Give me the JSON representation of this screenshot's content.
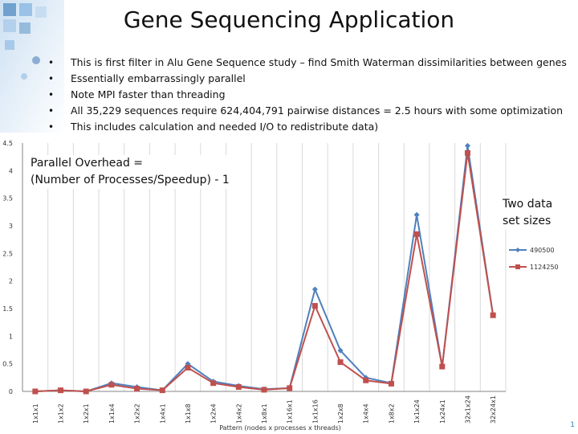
{
  "slide": {
    "title": "Gene Sequencing Application",
    "bullets": [
      "This is first filter in Alu Gene Sequence study – find Smith Waterman dissimilarities between genes",
      "Essentially embarrassingly parallel",
      "Note MPI faster than threading",
      "All 35,229 sequences require 624,404,791 pairwise distances = 2.5 hours with some optimization",
      "This includes calculation and needed I/O to redistribute data)"
    ],
    "overhead_line1": "Parallel Overhead =",
    "overhead_line2": "(Number of Processes/Speedup) - 1",
    "two_data_line1": "Two data",
    "two_data_line2": "set sizes",
    "slide_number": "1"
  },
  "colors": {
    "series1": "#4f81bd",
    "series2": "#c0504d",
    "grid": "#d9d9d9",
    "axis": "#868686"
  },
  "chart_data": {
    "type": "line",
    "xlabel": "Pattern (nodes x processes x threads)",
    "ylabel": "",
    "ylim": [
      0,
      4.5
    ],
    "yticks": [
      "0",
      "0.5",
      "1",
      "1.5",
      "2",
      "2.5",
      "3",
      "3.5",
      "4",
      "4.5"
    ],
    "grid": "vertical",
    "legend_position": "right",
    "categories": [
      "1x1x1",
      "1x1x2",
      "1x2x1",
      "1x1x4",
      "1x2x2",
      "1x4x1",
      "1x1x8",
      "1x2x4",
      "1x4x2",
      "1x8x1",
      "1x16x1",
      "1x1x16",
      "1x2x8",
      "1x4x4",
      "1x8x2",
      "1x1x24",
      "1x24x1",
      "32x1x24",
      "32x24x1"
    ],
    "series": [
      {
        "name": "490500",
        "values": [
          0.0,
          0.02,
          0.0,
          0.15,
          0.08,
          0.02,
          0.5,
          0.18,
          0.1,
          0.04,
          0.06,
          1.85,
          0.74,
          0.25,
          0.15,
          3.2,
          0.45,
          4.45,
          1.38
        ]
      },
      {
        "name": "1124250",
        "values": [
          0.0,
          0.02,
          0.0,
          0.12,
          0.05,
          0.02,
          0.43,
          0.15,
          0.08,
          0.03,
          0.06,
          1.55,
          0.53,
          0.2,
          0.14,
          2.85,
          0.45,
          4.32,
          1.38
        ]
      }
    ]
  }
}
